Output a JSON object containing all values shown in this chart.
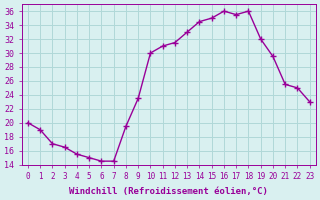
{
  "x": [
    0,
    1,
    2,
    3,
    4,
    5,
    6,
    7,
    8,
    9,
    10,
    11,
    12,
    13,
    14,
    15,
    16,
    17,
    18,
    19,
    20,
    21,
    22,
    23
  ],
  "y": [
    20,
    19,
    17,
    16.5,
    15.5,
    15,
    14.5,
    14.5,
    19.5,
    23.5,
    30,
    31,
    31.5,
    33,
    34.5,
    35,
    36,
    35.5,
    36,
    32,
    29.5,
    25.5,
    25,
    23
  ],
  "line_color": "#990099",
  "marker": "+",
  "xlabel": "Windchill (Refroidissement éolien,°C)",
  "ylim": [
    14,
    37
  ],
  "xlim": [
    -0.5,
    23.5
  ],
  "yticks": [
    14,
    16,
    18,
    20,
    22,
    24,
    26,
    28,
    30,
    32,
    34,
    36
  ],
  "xticks": [
    0,
    1,
    2,
    3,
    4,
    5,
    6,
    7,
    8,
    9,
    10,
    11,
    12,
    13,
    14,
    15,
    16,
    17,
    18,
    19,
    20,
    21,
    22,
    23
  ],
  "background_color": "#d9f0f0",
  "grid_color": "#b0d8d8",
  "xlabel_color": "#990099",
  "tick_color": "#990099",
  "font": "monospace"
}
